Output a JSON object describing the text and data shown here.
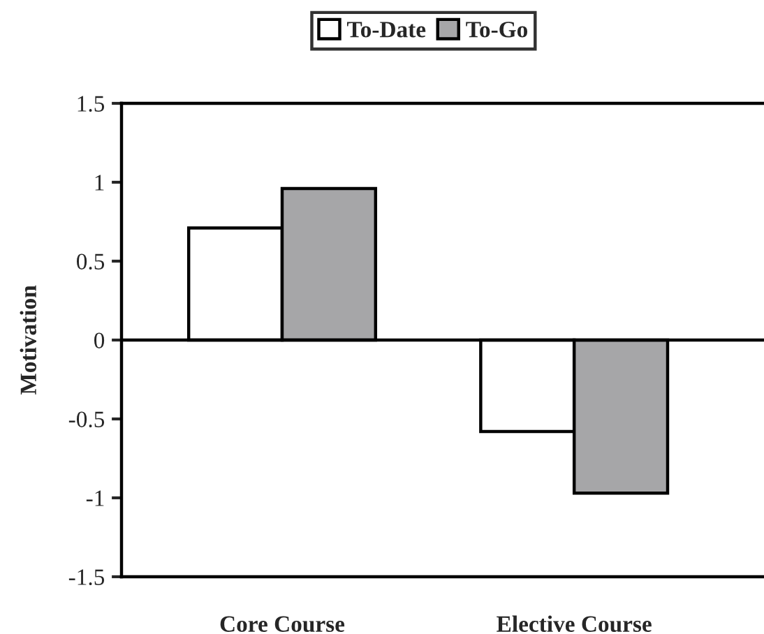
{
  "chart_data": {
    "type": "bar",
    "ylabel": "Motivation",
    "categories": [
      "Core Course",
      "Elective Course"
    ],
    "series": [
      {
        "name": "To-Date",
        "color": "#ffffff",
        "values": [
          0.71,
          -0.58
        ]
      },
      {
        "name": "To-Go",
        "color": "#a6a6a8",
        "values": [
          0.96,
          -0.97
        ]
      }
    ],
    "ylim": [
      -1.5,
      1.5
    ],
    "yticks": [
      -1.5,
      -1,
      -0.5,
      0,
      0.5,
      1,
      1.5
    ],
    "legend": "top",
    "grid": false,
    "ref_lines": [
      {
        "axis": "y",
        "value": 0
      }
    ]
  }
}
